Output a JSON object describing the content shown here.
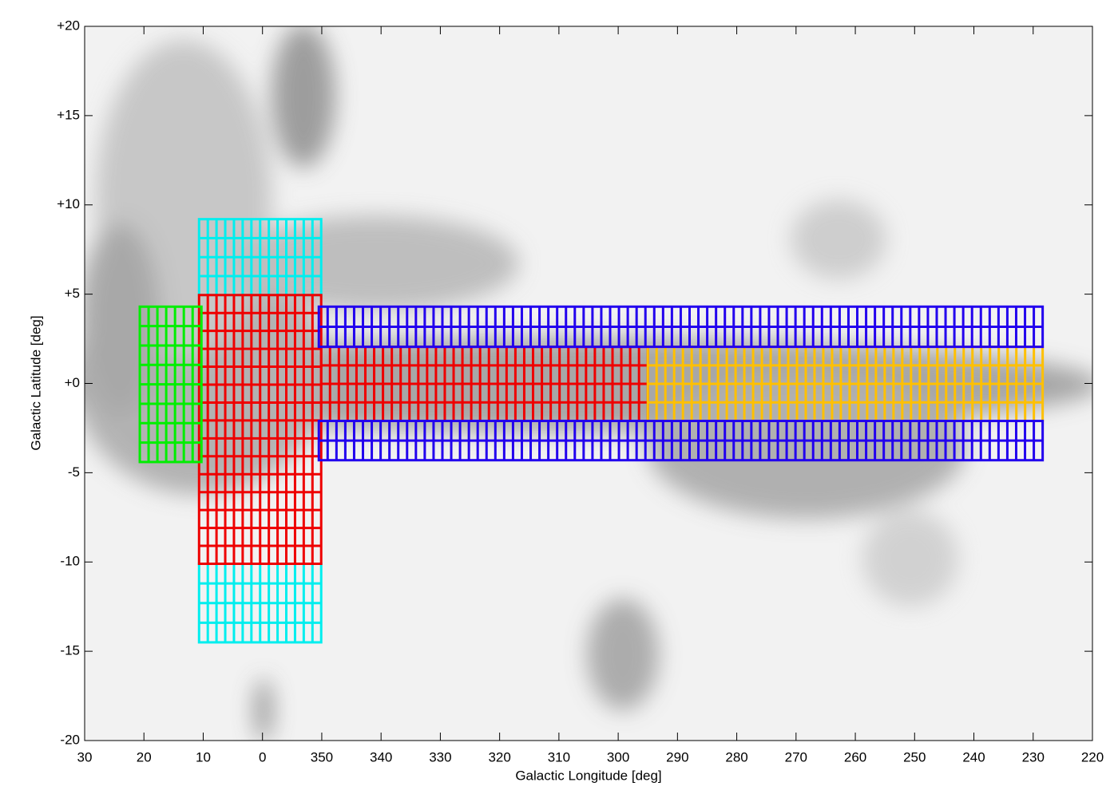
{
  "chart_data": {
    "type": "tiles",
    "xlabel": "Galactic Longitude [deg]",
    "ylabel": "Galactic Latitude [deg]",
    "xlim": [
      30,
      -140
    ],
    "ylim": [
      -20,
      20
    ],
    "xticks": [
      30,
      20,
      10,
      0,
      {
        "value": -10,
        "label": "350"
      },
      {
        "value": -20,
        "label": "340"
      },
      {
        "value": -30,
        "label": "330"
      },
      {
        "value": -40,
        "label": "320"
      },
      {
        "value": -50,
        "label": "310"
      },
      {
        "value": -60,
        "label": "300"
      },
      {
        "value": -70,
        "label": "290"
      },
      {
        "value": -80,
        "label": "280"
      },
      {
        "value": -90,
        "label": "270"
      },
      {
        "value": -100,
        "label": "260"
      },
      {
        "value": -110,
        "label": "250"
      },
      {
        "value": -120,
        "label": "240"
      },
      {
        "value": -130,
        "label": "230"
      },
      {
        "value": -140,
        "label": "220"
      }
    ],
    "yticks": [
      {
        "value": 20,
        "label": "+20"
      },
      {
        "value": 15,
        "label": "+15"
      },
      {
        "value": 10,
        "label": "+10"
      },
      {
        "value": 5,
        "label": "+5"
      },
      {
        "value": 0,
        "label": "+0"
      },
      -5,
      -10,
      -15,
      -20
    ],
    "regions": [
      {
        "color": "#00eeee",
        "x": [
          10.7,
          -9.9
        ],
        "y": [
          4.95,
          9.2
        ],
        "cols": 14,
        "rows": 4
      },
      {
        "color": "#00eeee",
        "x": [
          10.7,
          -9.9
        ],
        "y": [
          -14.5,
          -10.1
        ],
        "cols": 14,
        "rows": 4
      },
      {
        "color": "#ee0000",
        "x": [
          10.7,
          -9.9
        ],
        "y": [
          -10.1,
          4.95
        ],
        "cols": 14,
        "rows": 15
      },
      {
        "color": "#00ee00",
        "x": [
          20.7,
          10.3
        ],
        "y": [
          -4.4,
          4.3
        ],
        "cols": 7,
        "rows": 8
      },
      {
        "color": "#ee0000",
        "x": [
          -9.9,
          -65
        ],
        "y": [
          -2.1,
          2.05
        ],
        "cols": 37,
        "rows": 4
      },
      {
        "color": "#ffc000",
        "x": [
          -65,
          -131.6
        ],
        "y": [
          -2.1,
          2.05
        ],
        "cols": 45,
        "rows": 4
      },
      {
        "color": "#2200ee",
        "x": [
          -9.5,
          -131.6
        ],
        "y": [
          2.05,
          4.3
        ],
        "cols": 82,
        "rows": 2
      },
      {
        "color": "#2200ee",
        "x": [
          -9.5,
          -131.6
        ],
        "y": [
          -4.3,
          -2.1
        ],
        "cols": 82,
        "rows": 2
      }
    ]
  }
}
